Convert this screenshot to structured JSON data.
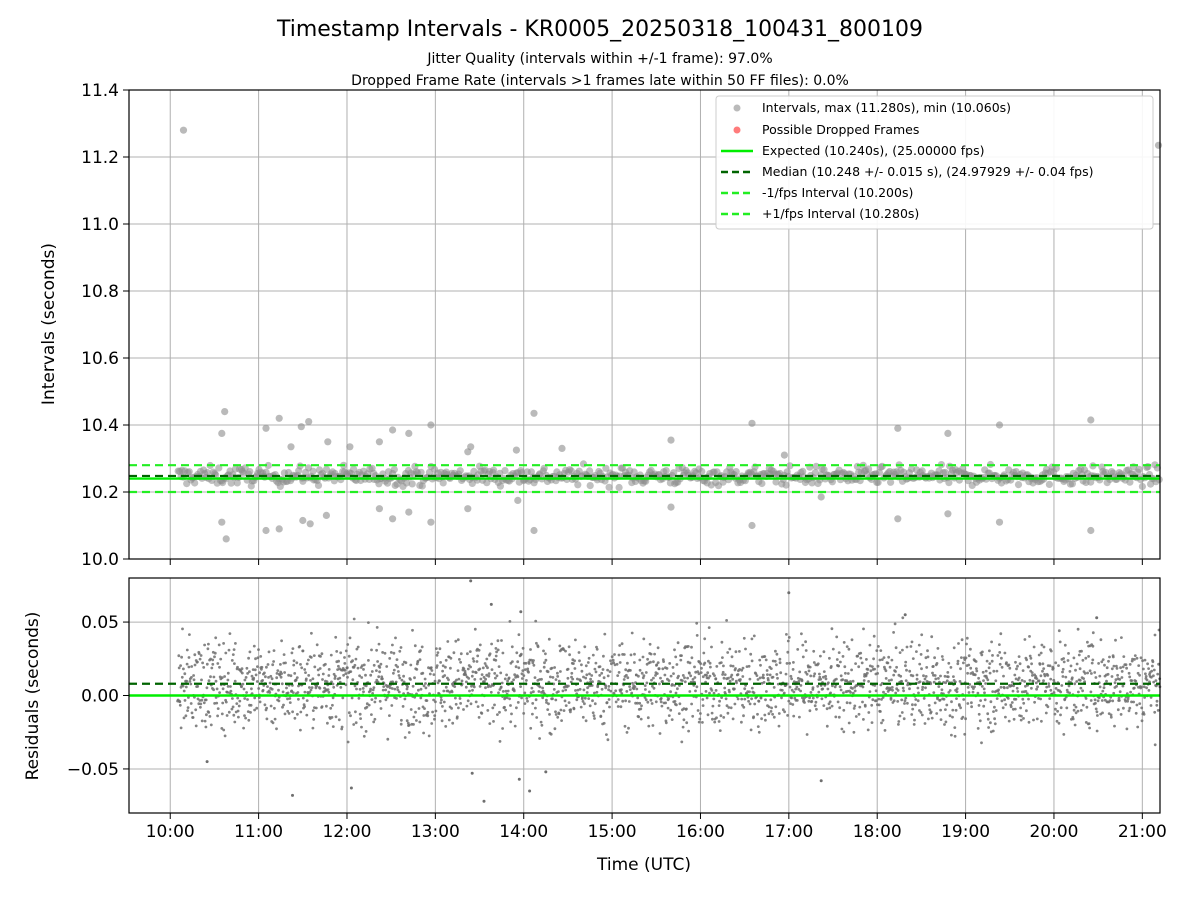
{
  "figure": {
    "title": "Timestamp Intervals - KR0005_20250318_100431_800109",
    "subtitle_1": "Jitter Quality (intervals within +/-1 frame): 97.0%",
    "subtitle_2": "Dropped Frame Rate (intervals >1 frames late within 50 FF files): 0.0%"
  },
  "chart_data": [
    {
      "type": "scatter",
      "panel": "intervals",
      "ylabel": "Intervals (seconds)",
      "xlabel": "",
      "xlim": [
        "09:32",
        "21:12"
      ],
      "ylim": [
        10.0,
        11.4
      ],
      "yticks": [
        "10.0",
        "10.2",
        "10.4",
        "10.6",
        "10.8",
        "11.0",
        "11.2",
        "11.4"
      ],
      "grid": true,
      "legend_position": "top-right",
      "legend": [
        "Intervals, max (11.280s), min (10.060s)",
        "Possible Dropped Frames",
        "Expected (10.240s), (25.00000 fps)",
        "Median (10.248 +/- 0.015 s), (24.97929 +/- 0.04 fps)",
        "-1/fps Interval (10.200s)",
        "+1/fps Interval (10.280s)"
      ],
      "reference_lines": {
        "expected": 10.24,
        "median": 10.248,
        "minus_one_frame": 10.2,
        "plus_one_frame": 10.28
      },
      "colors": {
        "points": "#8c8c8c",
        "dropped": "#ff5a5a",
        "expected": "#00ee00",
        "median": "#006400",
        "bounds": "#22ee22"
      },
      "band": {
        "x_start": "10:05",
        "x_end": "21:12",
        "center": 10.248,
        "spread": 0.015
      },
      "outliers": [
        {
          "x": "10:09",
          "y": 11.28
        },
        {
          "x": "21:11",
          "y": 11.235
        },
        {
          "x": "10:37",
          "y": 10.44
        },
        {
          "x": "10:35",
          "y": 10.375
        },
        {
          "x": "11:05",
          "y": 10.39
        },
        {
          "x": "11:14",
          "y": 10.42
        },
        {
          "x": "11:22",
          "y": 10.335
        },
        {
          "x": "11:29",
          "y": 10.395
        },
        {
          "x": "11:34",
          "y": 10.41
        },
        {
          "x": "11:47",
          "y": 10.35
        },
        {
          "x": "12:02",
          "y": 10.335
        },
        {
          "x": "12:22",
          "y": 10.35
        },
        {
          "x": "12:31",
          "y": 10.385
        },
        {
          "x": "12:42",
          "y": 10.375
        },
        {
          "x": "12:57",
          "y": 10.4
        },
        {
          "x": "13:24",
          "y": 10.335
        },
        {
          "x": "13:22",
          "y": 10.32
        },
        {
          "x": "13:55",
          "y": 10.325
        },
        {
          "x": "14:07",
          "y": 10.435
        },
        {
          "x": "14:26",
          "y": 10.33
        },
        {
          "x": "15:40",
          "y": 10.355
        },
        {
          "x": "16:35",
          "y": 10.405
        },
        {
          "x": "16:57",
          "y": 10.31
        },
        {
          "x": "18:14",
          "y": 10.39
        },
        {
          "x": "18:48",
          "y": 10.375
        },
        {
          "x": "19:23",
          "y": 10.4
        },
        {
          "x": "20:25",
          "y": 10.415
        },
        {
          "x": "10:35",
          "y": 10.11
        },
        {
          "x": "10:38",
          "y": 10.06
        },
        {
          "x": "11:05",
          "y": 10.085
        },
        {
          "x": "11:14",
          "y": 10.09
        },
        {
          "x": "11:30",
          "y": 10.115
        },
        {
          "x": "11:35",
          "y": 10.105
        },
        {
          "x": "11:46",
          "y": 10.13
        },
        {
          "x": "12:22",
          "y": 10.15
        },
        {
          "x": "12:31",
          "y": 10.12
        },
        {
          "x": "12:42",
          "y": 10.14
        },
        {
          "x": "12:57",
          "y": 10.11
        },
        {
          "x": "13:22",
          "y": 10.15
        },
        {
          "x": "13:56",
          "y": 10.175
        },
        {
          "x": "14:07",
          "y": 10.085
        },
        {
          "x": "15:40",
          "y": 10.155
        },
        {
          "x": "16:35",
          "y": 10.1
        },
        {
          "x": "17:22",
          "y": 10.185
        },
        {
          "x": "18:14",
          "y": 10.12
        },
        {
          "x": "18:48",
          "y": 10.135
        },
        {
          "x": "19:23",
          "y": 10.11
        },
        {
          "x": "20:25",
          "y": 10.085
        }
      ]
    },
    {
      "type": "scatter",
      "panel": "residuals",
      "ylabel": "Residuals (seconds)",
      "xlabel": "Time (UTC)",
      "xlim": [
        "09:32",
        "21:12"
      ],
      "ylim": [
        -0.08,
        0.08
      ],
      "yticks": [
        "−0.05",
        "0.00",
        "0.05"
      ],
      "xticks": [
        "10:00",
        "11:00",
        "12:00",
        "13:00",
        "14:00",
        "15:00",
        "16:00",
        "17:00",
        "18:00",
        "19:00",
        "20:00",
        "21:00"
      ],
      "grid": true,
      "reference_lines": {
        "zero": 0.0,
        "median_offset": 0.008
      },
      "band": {
        "x_start": "10:05",
        "x_end": "21:12",
        "center": 0.008,
        "spread": 0.015
      },
      "outliers": [
        {
          "x": "13:24",
          "y": 0.078
        },
        {
          "x": "17:00",
          "y": 0.07
        },
        {
          "x": "13:38",
          "y": 0.062
        },
        {
          "x": "13:58",
          "y": 0.057
        },
        {
          "x": "18:19",
          "y": 0.055
        },
        {
          "x": "20:29",
          "y": 0.053
        },
        {
          "x": "10:25",
          "y": -0.045
        },
        {
          "x": "11:23",
          "y": -0.068
        },
        {
          "x": "12:03",
          "y": -0.063
        },
        {
          "x": "13:25",
          "y": -0.053
        },
        {
          "x": "13:33",
          "y": -0.072
        },
        {
          "x": "14:04",
          "y": -0.065
        },
        {
          "x": "14:15",
          "y": -0.052
        },
        {
          "x": "17:22",
          "y": -0.058
        },
        {
          "x": "13:57",
          "y": -0.057
        }
      ]
    }
  ]
}
